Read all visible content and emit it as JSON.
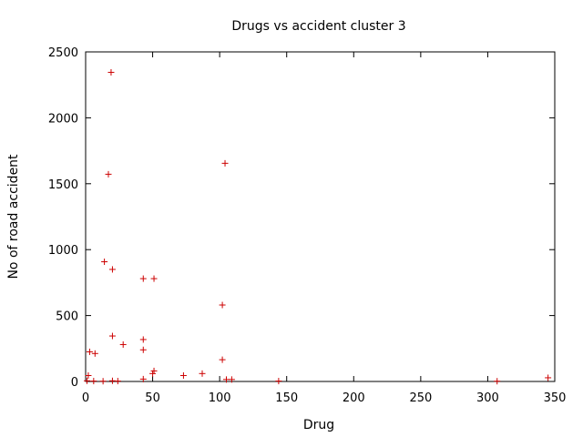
{
  "chart_data": {
    "type": "scatter",
    "title": "Drugs vs accident cluster 3",
    "xlabel": "Drug",
    "ylabel": "No of road accident",
    "xlim": [
      0,
      350
    ],
    "ylim": [
      0,
      2500
    ],
    "xticks": [
      0,
      50,
      100,
      150,
      200,
      250,
      300,
      350
    ],
    "yticks": [
      0,
      500,
      1000,
      1500,
      2000,
      2500
    ],
    "grid": false,
    "marker": "+",
    "color": "#cc0000",
    "points": [
      {
        "x": 19,
        "y": 2345
      },
      {
        "x": 104,
        "y": 1655
      },
      {
        "x": 17,
        "y": 1572
      },
      {
        "x": 14,
        "y": 908
      },
      {
        "x": 20,
        "y": 850
      },
      {
        "x": 43,
        "y": 780
      },
      {
        "x": 51,
        "y": 780
      },
      {
        "x": 102,
        "y": 580
      },
      {
        "x": 20,
        "y": 345
      },
      {
        "x": 43,
        "y": 318
      },
      {
        "x": 28,
        "y": 280
      },
      {
        "x": 43,
        "y": 240
      },
      {
        "x": 3,
        "y": 225
      },
      {
        "x": 7,
        "y": 212
      },
      {
        "x": 102,
        "y": 165
      },
      {
        "x": 51,
        "y": 80
      },
      {
        "x": 50,
        "y": 60
      },
      {
        "x": 87,
        "y": 60
      },
      {
        "x": 73,
        "y": 45
      },
      {
        "x": 2,
        "y": 45
      },
      {
        "x": 43,
        "y": 18
      },
      {
        "x": 105,
        "y": 15
      },
      {
        "x": 109,
        "y": 15
      },
      {
        "x": 345,
        "y": 28
      },
      {
        "x": 1,
        "y": 5
      },
      {
        "x": 6,
        "y": 3
      },
      {
        "x": 13,
        "y": 2
      },
      {
        "x": 20,
        "y": 5
      },
      {
        "x": 24,
        "y": 3
      },
      {
        "x": 144,
        "y": 3
      },
      {
        "x": 307,
        "y": 2
      }
    ]
  }
}
